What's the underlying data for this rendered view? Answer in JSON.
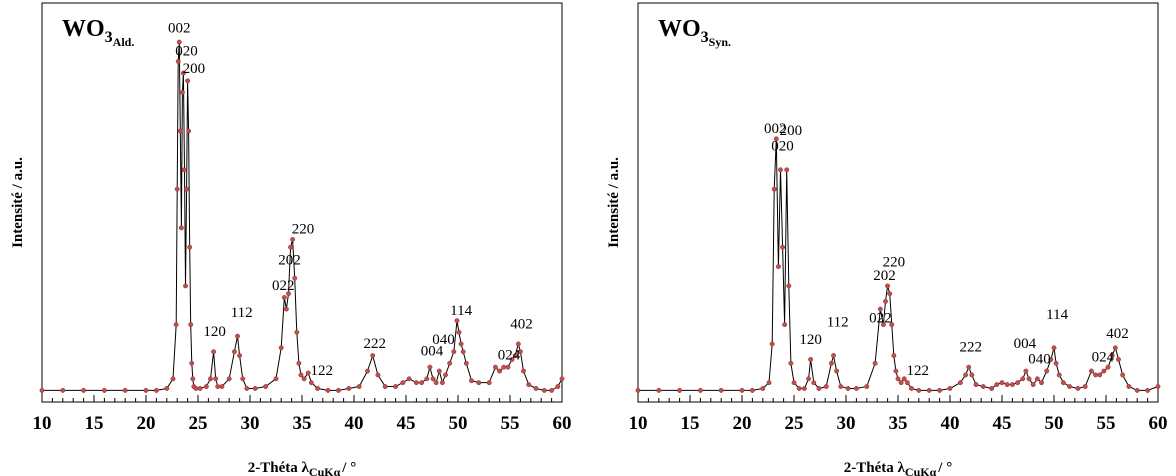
{
  "chart_data": [
    {
      "type": "line",
      "sample": {
        "formula": "WO",
        "subscript_digit": "3",
        "subscript_tag": "Ald."
      },
      "ylabel": "Intensité / a.u.",
      "xlabel": {
        "main": "2-Théta λ",
        "sub": "CuKα",
        "unit": "/ °"
      },
      "xlim": [
        10,
        60
      ],
      "ylim": [
        0,
        100
      ],
      "xticks": [
        "10",
        "15",
        "20",
        "25",
        "30",
        "35",
        "40",
        "45",
        "50",
        "55",
        "60"
      ],
      "grid": false,
      "line_color": "#000000",
      "marker_color": "#c0504d",
      "x": [
        10.0,
        12.0,
        14.0,
        16.0,
        18.0,
        20.0,
        21.0,
        22.0,
        22.6,
        22.9,
        23.0,
        23.1,
        23.2,
        23.3,
        23.4,
        23.5,
        23.6,
        23.7,
        23.8,
        23.9,
        24.0,
        24.1,
        24.2,
        24.3,
        24.4,
        24.5,
        24.6,
        24.8,
        25.2,
        25.8,
        26.2,
        26.5,
        26.7,
        26.9,
        27.3,
        28.0,
        28.5,
        28.8,
        29.0,
        29.3,
        29.7,
        30.5,
        31.5,
        32.5,
        33.0,
        33.3,
        33.5,
        33.7,
        33.9,
        34.1,
        34.3,
        34.5,
        34.7,
        34.9,
        35.2,
        35.6,
        35.9,
        36.5,
        37.5,
        38.5,
        39.5,
        40.5,
        41.3,
        41.8,
        42.3,
        43.0,
        44.0,
        44.7,
        45.3,
        46.0,
        46.5,
        47.0,
        47.3,
        47.6,
        47.9,
        48.2,
        48.5,
        48.8,
        49.2,
        49.6,
        49.9,
        50.1,
        50.3,
        50.5,
        50.8,
        51.3,
        52.0,
        53.0,
        53.6,
        54.0,
        54.4,
        54.8,
        55.2,
        55.5,
        55.8,
        56.0,
        56.3,
        56.8,
        57.5,
        58.3,
        59.0,
        59.6,
        60.0
      ],
      "y": [
        3,
        3,
        3,
        3,
        3,
        3,
        3,
        3.5,
        6,
        20,
        55,
        88,
        93,
        70,
        45,
        80,
        85,
        60,
        30,
        55,
        83,
        70,
        40,
        20,
        10,
        6,
        4,
        3.5,
        3.5,
        4,
        6,
        13,
        6,
        4,
        4,
        6,
        13,
        17,
        12,
        6,
        3.5,
        3.5,
        4,
        6,
        14,
        27,
        24,
        28,
        40,
        42,
        32,
        18,
        10,
        7,
        6,
        7.5,
        5,
        3.5,
        3,
        3,
        3.5,
        4,
        8,
        12,
        7,
        4,
        4,
        5,
        6,
        5,
        5,
        6,
        9,
        6,
        5,
        8,
        5,
        7,
        10,
        13,
        21,
        18,
        15,
        13,
        10,
        5.5,
        5,
        5,
        9,
        8,
        9,
        9,
        11,
        12,
        15,
        13,
        8,
        4.5,
        3.5,
        3,
        3,
        4,
        6
      ],
      "peak_labels": [
        {
          "label": "002",
          "x": 23.2,
          "y": 95.5
        },
        {
          "label": "020",
          "x": 23.9,
          "y": 89.5
        },
        {
          "label": "200",
          "x": 24.6,
          "y": 85
        },
        {
          "label": "120",
          "x": 26.6,
          "y": 17
        },
        {
          "label": "112",
          "x": 29.2,
          "y": 22
        },
        {
          "label": "022",
          "x": 33.2,
          "y": 29
        },
        {
          "label": "202",
          "x": 33.8,
          "y": 35.5
        },
        {
          "label": "220",
          "x": 35.1,
          "y": 43.5
        },
        {
          "label": "122",
          "x": 36.9,
          "y": 7
        },
        {
          "label": "222",
          "x": 42.0,
          "y": 14
        },
        {
          "label": "004",
          "x": 47.5,
          "y": 12
        },
        {
          "label": "040",
          "x": 48.6,
          "y": 15
        },
        {
          "label": "114",
          "x": 50.3,
          "y": 22.5
        },
        {
          "label": "024",
          "x": 54.9,
          "y": 11
        },
        {
          "label": "402",
          "x": 56.1,
          "y": 19
        }
      ]
    },
    {
      "type": "line",
      "sample": {
        "formula": "WO",
        "subscript_digit": "3",
        "subscript_tag": "Syn."
      },
      "ylabel": "Intensité / a.u.",
      "xlabel": {
        "main": "2-Théta λ",
        "sub": "CuKα",
        "unit": "/ °"
      },
      "xlim": [
        10,
        60
      ],
      "ylim": [
        0,
        100
      ],
      "xticks": [
        "10",
        "15",
        "20",
        "25",
        "30",
        "35",
        "40",
        "45",
        "50",
        "55",
        "60"
      ],
      "grid": false,
      "line_color": "#000000",
      "marker_color": "#c0504d",
      "x": [
        10.0,
        12.0,
        14.0,
        16.0,
        18.0,
        20.0,
        21.0,
        22.0,
        22.6,
        22.9,
        23.1,
        23.3,
        23.5,
        23.7,
        23.9,
        24.1,
        24.3,
        24.5,
        24.7,
        25.0,
        25.5,
        26.0,
        26.4,
        26.6,
        26.9,
        27.4,
        28.1,
        28.6,
        28.8,
        29.1,
        29.5,
        30.2,
        31.0,
        32.0,
        32.8,
        33.3,
        33.6,
        33.8,
        34.0,
        34.2,
        34.4,
        34.6,
        34.8,
        35.0,
        35.3,
        35.6,
        35.9,
        36.3,
        37.0,
        38.0,
        39.0,
        40.0,
        41.0,
        41.5,
        41.8,
        42.1,
        42.5,
        43.2,
        44.0,
        44.5,
        45.0,
        45.5,
        46.0,
        46.5,
        47.0,
        47.3,
        47.6,
        48.0,
        48.4,
        48.8,
        49.3,
        49.7,
        50.0,
        50.2,
        50.5,
        50.9,
        51.5,
        52.3,
        53.0,
        53.6,
        54.0,
        54.4,
        54.8,
        55.2,
        55.6,
        55.9,
        56.2,
        56.6,
        57.2,
        58.0,
        59.0,
        60.0
      ],
      "y": [
        3,
        3,
        3,
        3,
        3,
        3,
        3,
        3.5,
        5,
        15,
        55,
        68,
        35,
        60,
        40,
        20,
        60,
        30,
        10,
        5,
        3.5,
        3.5,
        6,
        11,
        5,
        3.5,
        4,
        10,
        12,
        8,
        4,
        3.5,
        3.5,
        4,
        10,
        24,
        20,
        26,
        30,
        28,
        20,
        12,
        8,
        6,
        5,
        6,
        5,
        3.5,
        3,
        3,
        3,
        3.5,
        5,
        7,
        9,
        7,
        4.5,
        4,
        3.5,
        4.5,
        5,
        4.5,
        4.5,
        5,
        6,
        8,
        6,
        4.5,
        6,
        5,
        8,
        11,
        14,
        10,
        7,
        5,
        4,
        3.5,
        4,
        8,
        7,
        7,
        8,
        9,
        12,
        14,
        11,
        7,
        4,
        3,
        3,
        4
      ],
      "peak_labels": [
        {
          "label": "002",
          "x": 23.2,
          "y": 69.5
        },
        {
          "label": "020",
          "x": 23.9,
          "y": 65
        },
        {
          "label": "200",
          "x": 24.7,
          "y": 69
        },
        {
          "label": "120",
          "x": 26.6,
          "y": 15
        },
        {
          "label": "112",
          "x": 29.2,
          "y": 19.5
        },
        {
          "label": "022",
          "x": 33.3,
          "y": 20.5
        },
        {
          "label": "202",
          "x": 33.7,
          "y": 31.5
        },
        {
          "label": "220",
          "x": 34.6,
          "y": 35
        },
        {
          "label": "122",
          "x": 36.9,
          "y": 7
        },
        {
          "label": "222",
          "x": 42.0,
          "y": 13
        },
        {
          "label": "004",
          "x": 47.2,
          "y": 14
        },
        {
          "label": "040",
          "x": 48.6,
          "y": 10
        },
        {
          "label": "114",
          "x": 50.3,
          "y": 21.5
        },
        {
          "label": "024",
          "x": 54.7,
          "y": 10.5
        },
        {
          "label": "402",
          "x": 56.1,
          "y": 16.5
        }
      ]
    }
  ]
}
